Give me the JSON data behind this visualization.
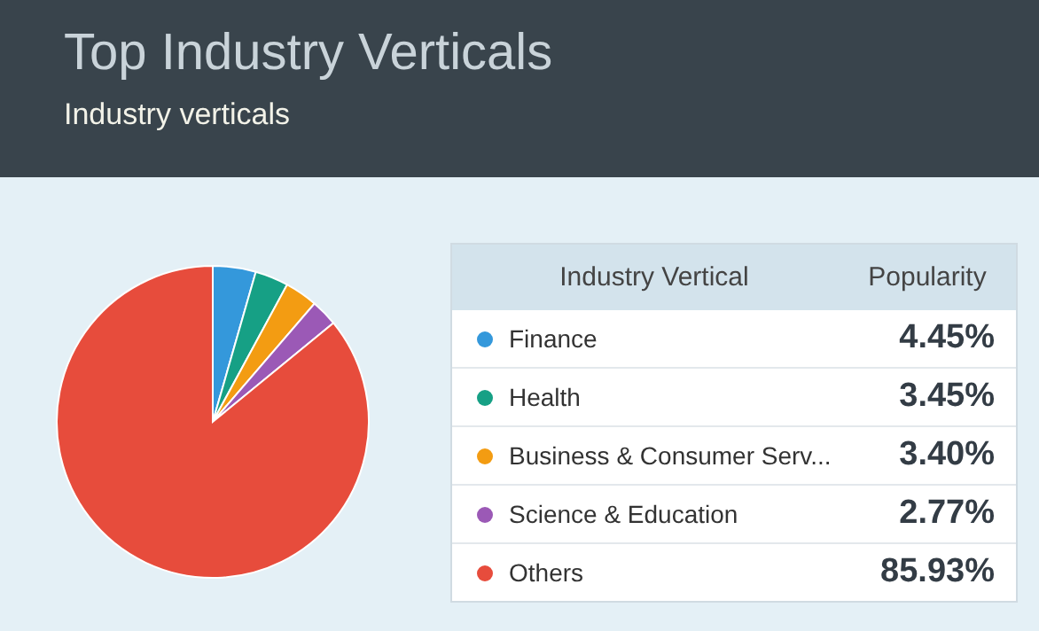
{
  "chart_data": {
    "type": "pie",
    "title": "Top Industry Verticals",
    "subtitle": "Industry verticals",
    "legend_title": "Industry Vertical",
    "annotations": [
      "Popularity"
    ],
    "categories": [
      "Finance",
      "Health",
      "Business & Consumer Serv...",
      "Science & Education",
      "Others"
    ],
    "values": [
      4.45,
      3.45,
      3.4,
      2.77,
      85.93
    ],
    "colors": [
      "#3498db",
      "#16a085",
      "#f39c12",
      "#9b59b6",
      "#e74c3c"
    ],
    "value_labels": [
      "4.45%",
      "3.45%",
      "3.40%",
      "2.77%",
      "85.93%"
    ],
    "legend": "right"
  }
}
